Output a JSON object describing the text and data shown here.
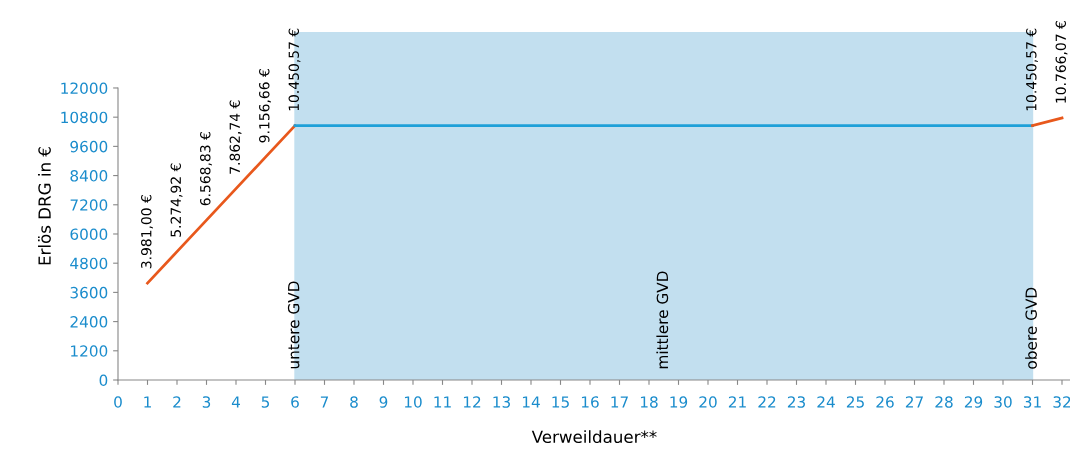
{
  "chart_data": {
    "type": "line",
    "xlabel": "Verweildauer**",
    "ylabel": "Erlös DRG in €",
    "xlim": [
      0,
      32.3
    ],
    "ylim": [
      0,
      14300
    ],
    "xticks": [
      0,
      1,
      2,
      3,
      4,
      5,
      6,
      7,
      8,
      9,
      10,
      11,
      12,
      13,
      14,
      15,
      16,
      17,
      18,
      19,
      20,
      21,
      22,
      23,
      24,
      25,
      26,
      27,
      28,
      29,
      30,
      31,
      32
    ],
    "yticks": [
      0,
      1200,
      2400,
      3600,
      4800,
      6000,
      7200,
      8400,
      9600,
      10800,
      12000
    ],
    "grid": false,
    "legend": false,
    "marker": "none",
    "line_style": "solid",
    "series": [
      {
        "color": "#e8581c",
        "x": [
          1,
          2,
          3,
          4,
          5,
          6
        ],
        "values": [
          3981.0,
          5274.92,
          6568.83,
          7862.74,
          9156.66,
          10450.57
        ],
        "value_labels": [
          "3.981,00 €",
          "5.274,92 €",
          "6.568,83 €",
          "7.862,74 €",
          "9.156,66 €",
          "10.450,57 €"
        ]
      },
      {
        "color": "#1ea0d8",
        "x": [
          6,
          31
        ],
        "values": [
          10450.57,
          10450.57
        ],
        "value_labels": [
          null,
          "10.450,57 €"
        ]
      },
      {
        "color": "#e8581c",
        "x": [
          31,
          32
        ],
        "values": [
          10450.57,
          10766.07
        ],
        "value_labels": [
          null,
          "10.766,07 €"
        ]
      }
    ],
    "bands": [
      {
        "axis": "x",
        "from": 6,
        "to": 31,
        "label": "mittlere GVD",
        "color": "#c2dfef"
      }
    ],
    "ref_lines": [
      {
        "axis": "x",
        "value": 6,
        "label": "untere GVD",
        "color": "#c2dfef"
      },
      {
        "axis": "x",
        "value": 31,
        "label": "obere GVD",
        "color": "#c2dfef"
      }
    ]
  }
}
